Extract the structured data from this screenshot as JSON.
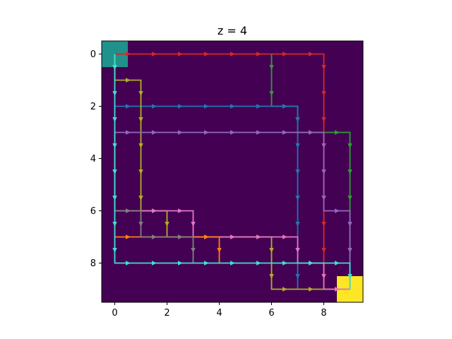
{
  "chart_data": {
    "type": "heatmap",
    "title": "z = 4",
    "xlabel": "",
    "ylabel": "",
    "grid": false,
    "xlim": [
      -0.5,
      9.5
    ],
    "ylim": [
      9.5,
      -0.5
    ],
    "x_ticks": [
      0,
      2,
      4,
      6,
      8
    ],
    "y_ticks": [
      0,
      2,
      4,
      6,
      8
    ],
    "background_color": "#440154",
    "cells": [
      {
        "row": 0,
        "col": 0,
        "color": "#21918c"
      },
      {
        "row": 9,
        "col": 9,
        "color": "#fde725"
      }
    ],
    "paths": [
      {
        "color": "#d62728",
        "points": [
          [
            0,
            0
          ],
          [
            8,
            0
          ],
          [
            8,
            9
          ],
          [
            9,
            9
          ]
        ]
      },
      {
        "color": "#2ca02c",
        "points": [
          [
            6,
            0
          ],
          [
            6,
            2
          ],
          [
            7,
            2
          ],
          [
            7,
            3
          ],
          [
            9,
            3
          ],
          [
            9,
            9
          ]
        ]
      },
      {
        "color": "#1f77b4",
        "points": [
          [
            0,
            2
          ],
          [
            7,
            2
          ],
          [
            7,
            9
          ]
        ]
      },
      {
        "color": "#b0b020",
        "points": [
          [
            0,
            0
          ],
          [
            0,
            1
          ],
          [
            1,
            1
          ],
          [
            1,
            6
          ],
          [
            2,
            6
          ],
          [
            2,
            7
          ],
          [
            6,
            7
          ],
          [
            6,
            9
          ],
          [
            9,
            9
          ]
        ]
      },
      {
        "color": "#9467bd",
        "points": [
          [
            0,
            3
          ],
          [
            8,
            3
          ],
          [
            8,
            6
          ],
          [
            9,
            6
          ],
          [
            9,
            9
          ]
        ]
      },
      {
        "color": "#e377c2",
        "points": [
          [
            0,
            6
          ],
          [
            3,
            6
          ],
          [
            3,
            7
          ],
          [
            7,
            7
          ],
          [
            7,
            8
          ],
          [
            8,
            8
          ],
          [
            8,
            9
          ],
          [
            9,
            9
          ]
        ]
      },
      {
        "color": "#ff7f0e",
        "points": [
          [
            0,
            7
          ],
          [
            4,
            7
          ],
          [
            4,
            8
          ]
        ]
      },
      {
        "color": "#7f7f7f",
        "points": [
          [
            0,
            3
          ],
          [
            0,
            6
          ],
          [
            1,
            6
          ],
          [
            1,
            7
          ],
          [
            3,
            7
          ],
          [
            3,
            8
          ]
        ]
      },
      {
        "color": "#40e0d0",
        "points": [
          [
            0,
            0
          ],
          [
            0,
            8
          ],
          [
            9,
            8
          ],
          [
            9,
            9
          ]
        ]
      }
    ]
  }
}
